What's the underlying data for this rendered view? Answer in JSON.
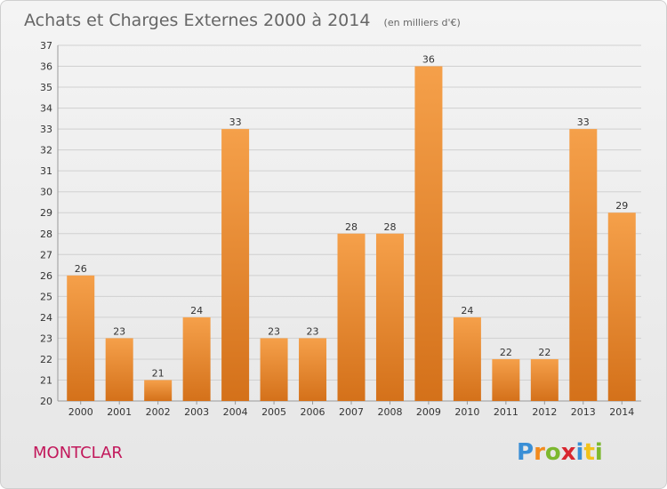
{
  "chart_data": {
    "type": "bar",
    "title": "Achats et Charges Externes 2000 à 2014",
    "subtitle": "(en milliers d'€)",
    "categories": [
      "2000",
      "2001",
      "2002",
      "2003",
      "2004",
      "2005",
      "2006",
      "2007",
      "2008",
      "2009",
      "2010",
      "2011",
      "2012",
      "2013",
      "2014"
    ],
    "values": [
      26,
      23,
      21,
      24,
      33,
      23,
      23,
      28,
      28,
      36,
      24,
      22,
      22,
      33,
      29
    ],
    "ylim": [
      20,
      37
    ],
    "yticks": [
      20,
      21,
      22,
      23,
      24,
      25,
      26,
      27,
      28,
      29,
      30,
      31,
      32,
      33,
      34,
      35,
      36,
      37
    ],
    "grid": true,
    "bar_color_top": "#f5a04a",
    "bar_color_bottom": "#d4711a"
  },
  "commune": "MONTCLAR",
  "logo": {
    "letters": [
      "P",
      "r",
      "o",
      "x",
      "i",
      "t",
      "i"
    ],
    "colors": [
      "#3a8fd6",
      "#f28a1d",
      "#7cb82f",
      "#d8262f",
      "#3a8fd6",
      "#f2c21b",
      "#7cb82f"
    ]
  }
}
